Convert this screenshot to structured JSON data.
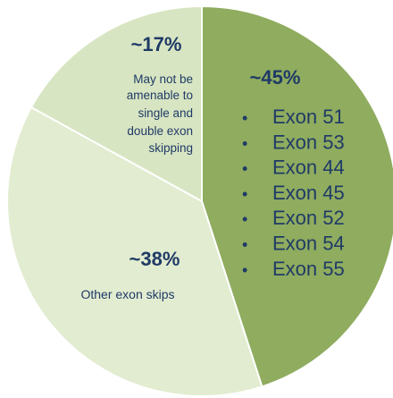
{
  "chart_data": {
    "type": "pie",
    "title": "",
    "slices": [
      {
        "label": "~45%",
        "value": 45,
        "color": "#8fac5f",
        "items": [
          "Exon 51",
          "Exon 53",
          "Exon 44",
          "Exon 45",
          "Exon 52",
          "Exon 54",
          "Exon 55"
        ]
      },
      {
        "label": "~38%",
        "value": 38,
        "color": "#e2ecd0",
        "description": "Other exon skips"
      },
      {
        "label": "~17%",
        "value": 17,
        "color": "#d8e5c2",
        "description": "May not be amenable to single and double exon skipping"
      }
    ]
  }
}
